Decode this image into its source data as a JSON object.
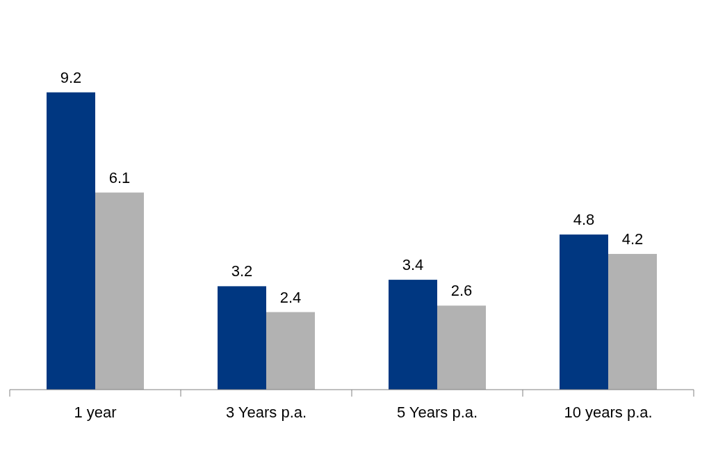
{
  "chart_data": {
    "type": "bar",
    "categories": [
      "1 year",
      "3 Years p.a.",
      "5 Years p.a.",
      "10 years p.a."
    ],
    "series": [
      {
        "color": "#003781",
        "values": [
          9.2,
          3.2,
          3.4,
          4.8
        ]
      },
      {
        "color": "#b2b2b2",
        "values": [
          6.1,
          2.4,
          2.6,
          4.2
        ]
      }
    ],
    "data_labels": true
  }
}
